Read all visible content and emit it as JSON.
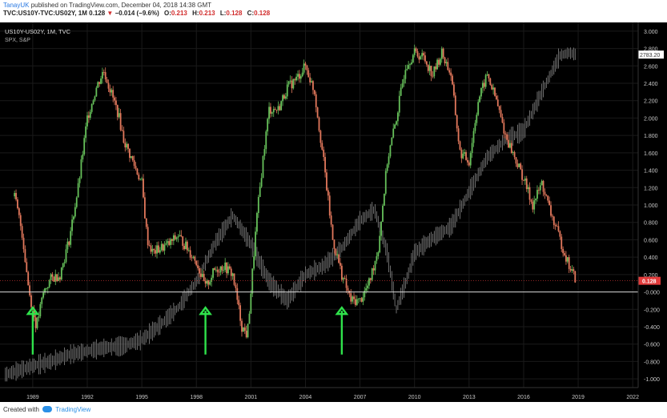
{
  "header": {
    "author": "TanayUK",
    "published": "published on TradingView.com, December 04, 2018 14:38 GMT",
    "symbol": "TVC:US10Y-TVC:US02Y, 1M",
    "open_label": "O:",
    "open": "0.213",
    "high_label": "H:",
    "high": "0.213",
    "low_label": "L:",
    "low": "0.128",
    "close_label": "C:",
    "close": "0.128",
    "last": "0.128",
    "change": "−0.014 (−9.6%)"
  },
  "footer": {
    "created_with": "Created with",
    "brand": "TradingView"
  },
  "chart_data": {
    "type": "line",
    "legend": [
      "US10Y-US02Y, 1M, TVC",
      "SPX, S&P"
    ],
    "xlim": [
      1987.2,
      2022.3
    ],
    "ylim": [
      -1.1,
      3.1
    ],
    "x_ticks": [
      "1989",
      "1992",
      "1995",
      "1998",
      "2001",
      "2004",
      "2007",
      "2010",
      "2013",
      "2016",
      "2019",
      "2022"
    ],
    "y_ticks": [
      "3.000",
      "2.800",
      "2.600",
      "2.400",
      "2.200",
      "2.000",
      "1.800",
      "1.600",
      "1.400",
      "1.200",
      "1.000",
      "0.800",
      "0.600",
      "0.400",
      "0.200",
      "-0.000",
      "-0.200",
      "-0.400",
      "-0.600",
      "-0.800",
      "-1.000"
    ],
    "series": [
      {
        "name": "US10Y-US02Y",
        "color_up": "#66c05a",
        "color_down": "#e2785c",
        "points": [
          [
            1988.0,
            1.1
          ],
          [
            1988.4,
            0.7
          ],
          [
            1988.8,
            0.0
          ],
          [
            1989.2,
            -0.4
          ],
          [
            1989.6,
            0.0
          ],
          [
            1990.0,
            0.15
          ],
          [
            1990.5,
            0.2
          ],
          [
            1991.0,
            0.6
          ],
          [
            1991.5,
            1.2
          ],
          [
            1992.0,
            2.0
          ],
          [
            1992.5,
            2.35
          ],
          [
            1992.9,
            2.55
          ],
          [
            1993.3,
            2.3
          ],
          [
            1993.7,
            2.05
          ],
          [
            1994.0,
            1.75
          ],
          [
            1994.5,
            1.5
          ],
          [
            1995.0,
            1.25
          ],
          [
            1995.3,
            0.6
          ],
          [
            1995.6,
            0.45
          ],
          [
            1996.0,
            0.5
          ],
          [
            1996.5,
            0.55
          ],
          [
            1997.0,
            0.65
          ],
          [
            1997.5,
            0.5
          ],
          [
            1998.0,
            0.35
          ],
          [
            1998.5,
            0.05
          ],
          [
            1999.0,
            0.25
          ],
          [
            1999.5,
            0.3
          ],
          [
            2000.0,
            0.2
          ],
          [
            2000.5,
            -0.4
          ],
          [
            2000.8,
            -0.5
          ],
          [
            2001.0,
            0.0
          ],
          [
            2001.3,
            0.8
          ],
          [
            2001.7,
            1.6
          ],
          [
            2002.0,
            2.1
          ],
          [
            2002.5,
            2.1
          ],
          [
            2003.0,
            2.35
          ],
          [
            2003.5,
            2.45
          ],
          [
            2004.0,
            2.6
          ],
          [
            2004.5,
            2.3
          ],
          [
            2005.0,
            1.5
          ],
          [
            2005.5,
            0.6
          ],
          [
            2006.0,
            0.2
          ],
          [
            2006.5,
            -0.1
          ],
          [
            2007.0,
            -0.1
          ],
          [
            2007.5,
            0.1
          ],
          [
            2008.0,
            0.5
          ],
          [
            2008.5,
            1.5
          ],
          [
            2009.0,
            2.0
          ],
          [
            2009.5,
            2.6
          ],
          [
            2010.0,
            2.75
          ],
          [
            2010.5,
            2.7
          ],
          [
            2011.0,
            2.5
          ],
          [
            2011.5,
            2.75
          ],
          [
            2012.0,
            2.5
          ],
          [
            2012.5,
            1.6
          ],
          [
            2013.0,
            1.5
          ],
          [
            2013.5,
            2.2
          ],
          [
            2014.0,
            2.5
          ],
          [
            2014.5,
            2.2
          ],
          [
            2015.0,
            1.8
          ],
          [
            2015.5,
            1.55
          ],
          [
            2016.0,
            1.3
          ],
          [
            2016.5,
            1.0
          ],
          [
            2017.0,
            1.25
          ],
          [
            2017.5,
            0.9
          ],
          [
            2018.0,
            0.6
          ],
          [
            2018.5,
            0.3
          ],
          [
            2018.9,
            0.13
          ]
        ]
      },
      {
        "name": "SPX",
        "color": "#8a8a8a",
        "points": [
          [
            1987.5,
            -0.95
          ],
          [
            1989.0,
            -0.85
          ],
          [
            1990.0,
            -0.8
          ],
          [
            1991.0,
            -0.72
          ],
          [
            1992.0,
            -0.68
          ],
          [
            1993.0,
            -0.64
          ],
          [
            1994.0,
            -0.62
          ],
          [
            1995.0,
            -0.55
          ],
          [
            1996.0,
            -0.38
          ],
          [
            1997.0,
            -0.18
          ],
          [
            1998.0,
            0.12
          ],
          [
            1999.0,
            0.55
          ],
          [
            2000.0,
            0.88
          ],
          [
            2001.0,
            0.55
          ],
          [
            2002.0,
            0.12
          ],
          [
            2003.0,
            -0.1
          ],
          [
            2004.0,
            0.2
          ],
          [
            2005.0,
            0.3
          ],
          [
            2006.0,
            0.5
          ],
          [
            2007.0,
            0.82
          ],
          [
            2007.8,
            0.95
          ],
          [
            2008.5,
            0.45
          ],
          [
            2009.0,
            -0.2
          ],
          [
            2009.5,
            0.1
          ],
          [
            2010.0,
            0.45
          ],
          [
            2011.0,
            0.62
          ],
          [
            2012.0,
            0.75
          ],
          [
            2013.0,
            1.15
          ],
          [
            2014.0,
            1.55
          ],
          [
            2015.0,
            1.75
          ],
          [
            2016.0,
            1.85
          ],
          [
            2017.0,
            2.3
          ],
          [
            2018.0,
            2.72
          ],
          [
            2018.5,
            2.75
          ],
          [
            2018.9,
            2.73
          ]
        ]
      }
    ],
    "horizontal_line": 0.0,
    "last_value_label": "0.128",
    "last_value_color": "#e23b3b",
    "spx_last_label": "2783.20",
    "annotations": [
      {
        "type": "arrow",
        "color": "#2fe24b",
        "x": 1989.0
      },
      {
        "type": "arrow",
        "color": "#2fe24b",
        "x": 1998.5
      },
      {
        "type": "arrow",
        "color": "#2fe24b",
        "x": 2006.0
      }
    ],
    "grid": true,
    "background": "#000000"
  }
}
